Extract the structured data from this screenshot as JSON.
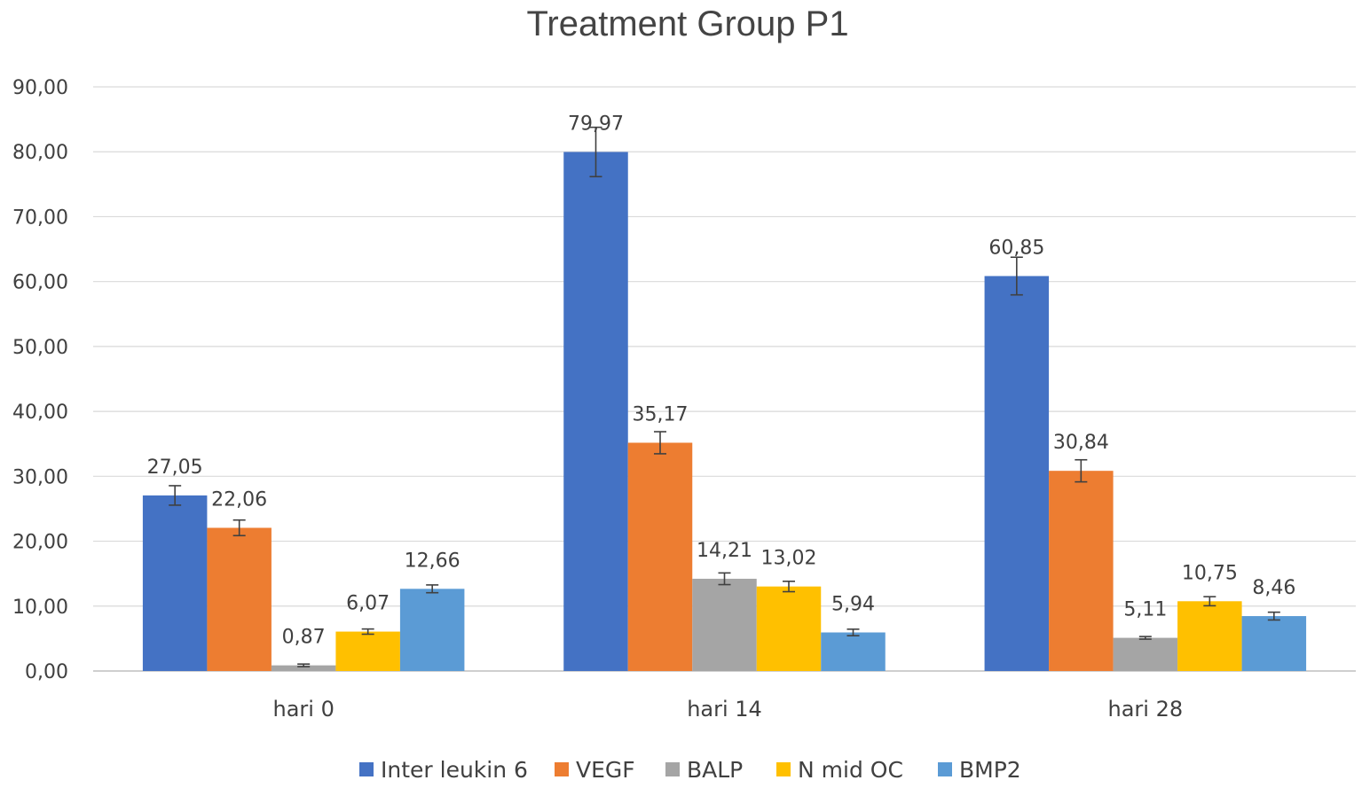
{
  "chart_data": {
    "type": "bar",
    "title": "Treatment Group P1",
    "xlabel": "",
    "ylabel": "",
    "categories": [
      "hari 0",
      "hari 14",
      "hari 28"
    ],
    "ylim": [
      0,
      90
    ],
    "yticks": [
      0,
      10,
      20,
      30,
      40,
      50,
      60,
      70,
      80,
      90
    ],
    "ytick_labels": [
      "0,00",
      "10,00",
      "20,00",
      "30,00",
      "40,00",
      "50,00",
      "60,00",
      "70,00",
      "80,00",
      "90,00"
    ],
    "grid": true,
    "legend": "bottom",
    "series": [
      {
        "name": "Inter leukin 6",
        "color": "#4472C4",
        "values": [
          27.05,
          79.97,
          60.85
        ],
        "labels": [
          "27,05",
          "79,97",
          "60,85"
        ],
        "errors": [
          1.5,
          3.8,
          2.9
        ]
      },
      {
        "name": "VEGF",
        "color": "#ED7D31",
        "values": [
          22.06,
          35.17,
          30.84
        ],
        "labels": [
          "22,06",
          "35,17",
          "30,84"
        ],
        "errors": [
          1.2,
          1.7,
          1.7
        ]
      },
      {
        "name": "BALP",
        "color": "#A5A5A5",
        "values": [
          0.87,
          14.21,
          5.11
        ],
        "labels": [
          "0,87",
          "14,21",
          "5,11"
        ],
        "errors": [
          0.2,
          0.9,
          0.2
        ]
      },
      {
        "name": "N mid OC",
        "color": "#FFC000",
        "values": [
          6.07,
          13.02,
          10.75
        ],
        "labels": [
          "6,07",
          "13,02",
          "10,75"
        ],
        "errors": [
          0.4,
          0.8,
          0.7
        ]
      },
      {
        "name": "BMP2",
        "color": "#5B9BD5",
        "values": [
          12.66,
          5.94,
          8.46
        ],
        "labels": [
          "12,66",
          "5,94",
          "8,46"
        ],
        "errors": [
          0.6,
          0.5,
          0.6
        ]
      }
    ]
  }
}
